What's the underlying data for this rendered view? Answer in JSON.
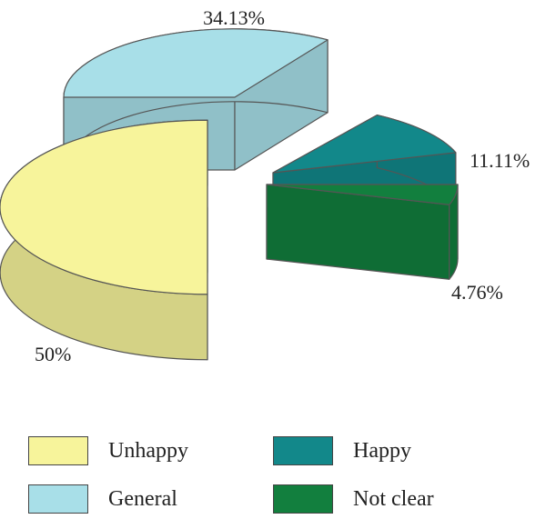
{
  "chart_data": {
    "type": "pie",
    "style": "3d-exploded",
    "slices": [
      {
        "label": "Unhappy",
        "value": 50,
        "display": "50%",
        "color": "#f7f49b"
      },
      {
        "label": "General",
        "value": 34.13,
        "display": "34.13%",
        "color": "#a8dfe8"
      },
      {
        "label": "Happy",
        "value": 11.11,
        "display": "11.11%",
        "color": "#12888a"
      },
      {
        "label": "Not clear",
        "value": 4.76,
        "display": "4.76%",
        "color": "#127f3e"
      }
    ],
    "legend_position": "bottom"
  },
  "legend": {
    "items": [
      {
        "label": "Unhappy"
      },
      {
        "label": "General"
      },
      {
        "label": "Happy"
      },
      {
        "label": "Not clear"
      }
    ]
  }
}
